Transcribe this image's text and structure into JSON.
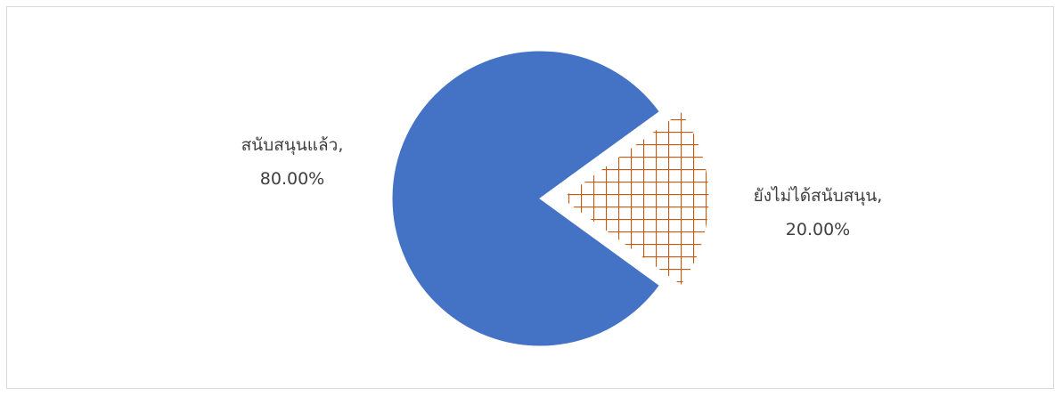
{
  "chart_data": {
    "type": "pie",
    "title": "",
    "series": [
      {
        "slices": [
          {
            "label": "สนับสนุนแล้ว",
            "value": 80.0,
            "value_label": "80.00%",
            "color": "#4472C4",
            "fill": "solid"
          },
          {
            "label": "ยังไม่ได้สนับสนุน",
            "value": 20.0,
            "value_label": "20.00%",
            "color": "#C55A11",
            "fill": "grid-pattern",
            "exploded": true
          }
        ]
      }
    ],
    "legend": "none",
    "data_labels": "category name and percentage"
  }
}
